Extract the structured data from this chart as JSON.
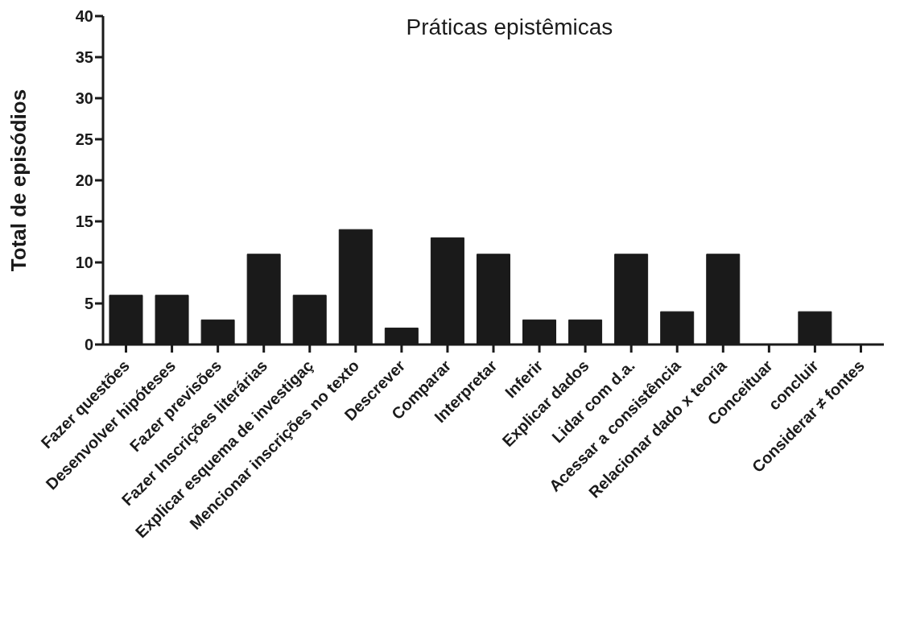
{
  "chart_data": {
    "type": "bar",
    "title": "Práticas epistêmicas",
    "ylabel": "Total de episódios",
    "categories": [
      "Fazer questões",
      "Desenvolver hipóteses",
      "Fazer previsões",
      "Fazer Inscrições literárias",
      "Explicar esquema de investigaç",
      "Mencionar inscrições no texto",
      "Descrever",
      "Comparar",
      "Interpretar",
      "Inferir",
      "Explicar dados",
      "Lidar com d.a.",
      "Acessar a consistência",
      "Relacionar dado x teoria",
      "Conceituar",
      "concluir",
      "Considerar ≠ fontes"
    ],
    "values": [
      6,
      6,
      3,
      11,
      6,
      14,
      2,
      13,
      11,
      3,
      3,
      11,
      4,
      11,
      0,
      4,
      0
    ],
    "color": "#1a1a1a",
    "ylim": [
      0,
      40
    ],
    "yticks": [
      0,
      5,
      10,
      15,
      20,
      25,
      30,
      35,
      40
    ],
    "grid": false,
    "legend": false
  }
}
